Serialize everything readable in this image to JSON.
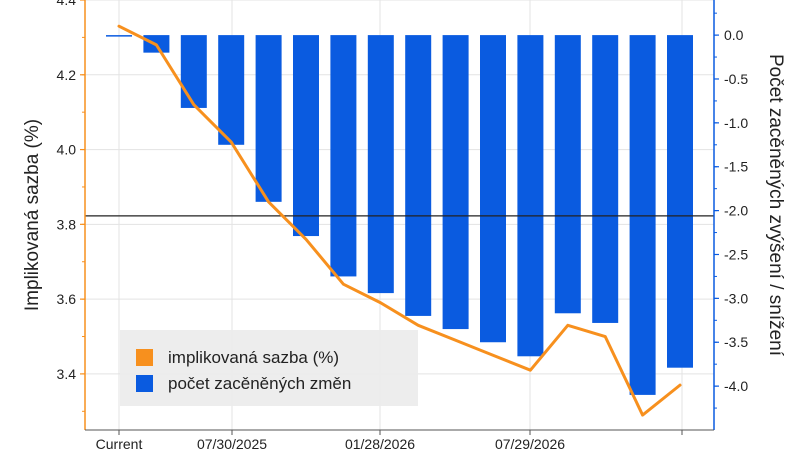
{
  "chart_data": {
    "type": "bar+line",
    "ylabel_left": "Implikovaná sazba (%)",
    "ylabel_right": "Počet zacěněných zvýšení / snížení",
    "left_axis": {
      "min": 3.25,
      "max": 4.4,
      "ticks": [
        3.4,
        3.6,
        3.8,
        4.0,
        4.2,
        4.4
      ]
    },
    "right_axis": {
      "min": -4.5,
      "max": 0.4,
      "ticks": [
        0.0,
        -0.5,
        -1.0,
        -1.5,
        -2.0,
        -2.5,
        -3.0,
        -3.5,
        -4.0
      ]
    },
    "x_tick_labels": [
      "Current",
      "07/30/2025",
      "01/28/2026",
      "07/29/2026"
    ],
    "reference_line_right": -2.06,
    "series": [
      {
        "name": "implikovaná sazba (%)",
        "color": "#f7901e",
        "values": [
          4.33,
          4.28,
          4.12,
          4.02,
          3.86,
          3.76,
          3.64,
          3.59,
          3.53,
          3.49,
          3.45,
          3.41,
          3.53,
          3.5,
          3.29,
          3.37
        ]
      },
      {
        "name": "počet zacěněných změn",
        "color": "#0a5be0",
        "values": [
          0.0,
          -0.2,
          -0.83,
          -1.25,
          -1.9,
          -2.29,
          -2.75,
          -2.94,
          -3.2,
          -3.35,
          -3.5,
          -3.66,
          -3.17,
          -3.28,
          -4.1,
          -3.79
        ]
      }
    ],
    "legend_position": "bottom-left"
  }
}
